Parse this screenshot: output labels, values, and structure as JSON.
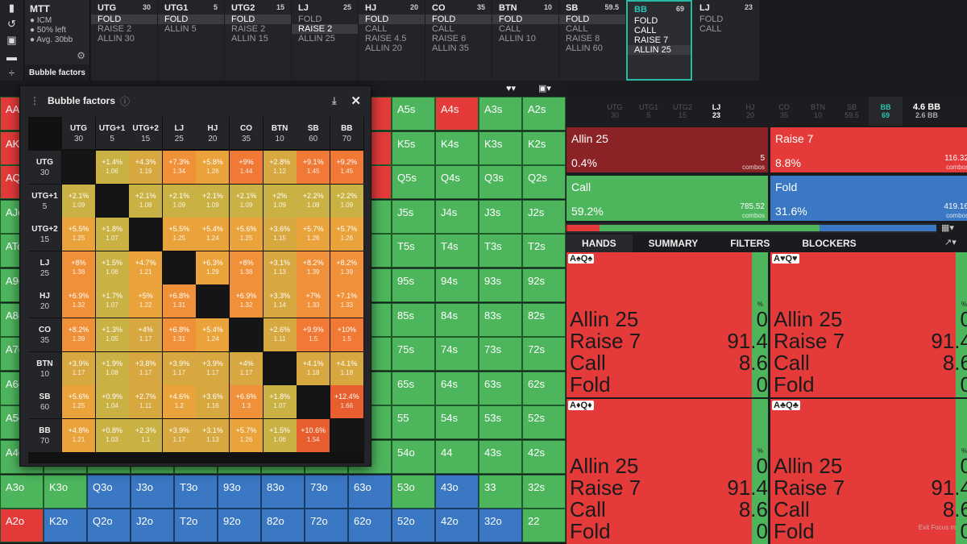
{
  "sidebar": {
    "icons": [
      "bookmark-icon",
      "undo-icon",
      "save-icon",
      "gamepad-icon",
      "split-icon"
    ]
  },
  "mtt": {
    "title": "MTT",
    "lines": [
      "ICM",
      "50% left",
      "Avg. 30bb"
    ],
    "bb_unit": "bb",
    "bubble_label": "Bubble factors"
  },
  "seats": [
    {
      "name": "UTG",
      "stack": "30",
      "actions": [
        "FOLD",
        "RAISE 2",
        "ALLIN 30"
      ],
      "sel": 0
    },
    {
      "name": "UTG1",
      "stack": "5",
      "actions": [
        "FOLD",
        "ALLIN 5"
      ],
      "sel": 0
    },
    {
      "name": "UTG2",
      "stack": "15",
      "actions": [
        "FOLD",
        "RAISE 2",
        "ALLIN 15"
      ],
      "sel": 0
    },
    {
      "name": "LJ",
      "stack": "25",
      "actions": [
        "FOLD",
        "RAISE 2",
        "ALLIN 25"
      ],
      "sel": 1
    },
    {
      "name": "HJ",
      "stack": "20",
      "actions": [
        "FOLD",
        "CALL",
        "RAISE 4.5",
        "ALLIN 20"
      ],
      "sel": 0
    },
    {
      "name": "CO",
      "stack": "35",
      "actions": [
        "FOLD",
        "CALL",
        "RAISE 6",
        "ALLIN 35"
      ],
      "sel": 0
    },
    {
      "name": "BTN",
      "stack": "10",
      "actions": [
        "FOLD",
        "CALL",
        "ALLIN 10"
      ],
      "sel": 0
    },
    {
      "name": "SB",
      "stack": "59.5",
      "actions": [
        "FOLD",
        "CALL",
        "RAISE 8",
        "ALLIN 60"
      ],
      "sel": 0
    },
    {
      "name": "BB",
      "stack": "69",
      "actions": [
        "FOLD",
        "CALL",
        "RAISE 7",
        "ALLIN 25"
      ],
      "sel": 3,
      "current": true
    },
    {
      "name": "LJ",
      "stack": "23",
      "actions": [
        "FOLD",
        "CALL"
      ],
      "sel": -1
    }
  ],
  "grid": [
    [
      "AA",
      "",
      "",
      "",
      "",
      "",
      "",
      "",
      "",
      "A5s",
      "A4s",
      "A3s",
      "A2s"
    ],
    [
      "AKo",
      "",
      "",
      "",
      "",
      "",
      "",
      "",
      "",
      "K5s",
      "K4s",
      "K3s",
      "K2s"
    ],
    [
      "AQo",
      "",
      "",
      "",
      "",
      "",
      "",
      "",
      "",
      "Q5s",
      "Q4s",
      "Q3s",
      "Q2s"
    ],
    [
      "AJo",
      "",
      "",
      "",
      "",
      "",
      "",
      "",
      "",
      "J5s",
      "J4s",
      "J3s",
      "J2s"
    ],
    [
      "ATo",
      "",
      "",
      "",
      "",
      "",
      "",
      "",
      "",
      "T5s",
      "T4s",
      "T3s",
      "T2s"
    ],
    [
      "A9o",
      "",
      "",
      "",
      "",
      "",
      "",
      "",
      "",
      "95s",
      "94s",
      "93s",
      "92s"
    ],
    [
      "A8o",
      "",
      "",
      "",
      "",
      "",
      "",
      "",
      "",
      "85s",
      "84s",
      "83s",
      "82s"
    ],
    [
      "A7o",
      "",
      "",
      "",
      "",
      "",
      "",
      "",
      "",
      "75s",
      "74s",
      "73s",
      "72s"
    ],
    [
      "A6o",
      "",
      "",
      "",
      "",
      "",
      "",
      "",
      "",
      "65s",
      "64s",
      "63s",
      "62s"
    ],
    [
      "A5o",
      "",
      "",
      "",
      "",
      "",
      "",
      "",
      "",
      "55",
      "54s",
      "53s",
      "52s"
    ],
    [
      "A4o",
      "",
      "",
      "",
      "",
      "",
      "",
      "",
      "",
      "54o",
      "44",
      "43s",
      "42s"
    ],
    [
      "A3o",
      "K3o",
      "Q3o",
      "J3o",
      "T3o",
      "93o",
      "83o",
      "73o",
      "63o",
      "53o",
      "43o",
      "33",
      "32s"
    ],
    [
      "A2o",
      "K2o",
      "Q2o",
      "J2o",
      "T2o",
      "92o",
      "82o",
      "72o",
      "62o",
      "52o",
      "42o",
      "32o",
      "22"
    ]
  ],
  "grid_colors": [
    [
      "r",
      "r",
      "r",
      "r",
      "r",
      "r",
      "r",
      "r",
      "r",
      "g",
      "r",
      "g",
      "g"
    ],
    [
      "r",
      "r",
      "r",
      "r",
      "r",
      "r",
      "r",
      "r",
      "r",
      "g",
      "g",
      "g",
      "g"
    ],
    [
      "r",
      "r",
      "r",
      "r",
      "r",
      "r",
      "r",
      "r",
      "r",
      "g",
      "g",
      "g",
      "g"
    ],
    [
      "g",
      "g",
      "g",
      "g",
      "g",
      "g",
      "g",
      "g",
      "g",
      "g",
      "g",
      "g",
      "g"
    ],
    [
      "g",
      "g",
      "g",
      "g",
      "g",
      "g",
      "g",
      "g",
      "g",
      "g",
      "g",
      "g",
      "g"
    ],
    [
      "g",
      "g",
      "g",
      "g",
      "g",
      "g",
      "g",
      "g",
      "g",
      "g",
      "g",
      "g",
      "g"
    ],
    [
      "g",
      "g",
      "g",
      "g",
      "g",
      "g",
      "g",
      "g",
      "g",
      "g",
      "g",
      "g",
      "g"
    ],
    [
      "g",
      "g",
      "g",
      "g",
      "g",
      "g",
      "g",
      "g",
      "g",
      "g",
      "g",
      "g",
      "g"
    ],
    [
      "g",
      "g",
      "g",
      "g",
      "g",
      "g",
      "g",
      "g",
      "g",
      "g",
      "g",
      "g",
      "g"
    ],
    [
      "g",
      "g",
      "g",
      "g",
      "g",
      "g",
      "g",
      "g",
      "g",
      "g",
      "g",
      "g",
      "g"
    ],
    [
      "g",
      "g",
      "g",
      "g",
      "g",
      "g",
      "g",
      "g",
      "g",
      "g",
      "g",
      "g",
      "g"
    ],
    [
      "g",
      "g",
      "b",
      "b",
      "b",
      "b",
      "b",
      "b",
      "b",
      "g",
      "b",
      "g",
      "g"
    ],
    [
      "r",
      "b",
      "b",
      "b",
      "b",
      "b",
      "b",
      "b",
      "b",
      "b",
      "b",
      "b",
      "g"
    ]
  ],
  "bubble": {
    "title": "Bubble factors",
    "cols": [
      [
        "UTG",
        "30"
      ],
      [
        "UTG+1",
        "5"
      ],
      [
        "UTG+2",
        "15"
      ],
      [
        "LJ",
        "25"
      ],
      [
        "HJ",
        "20"
      ],
      [
        "CO",
        "35"
      ],
      [
        "BTN",
        "10"
      ],
      [
        "SB",
        "60"
      ],
      [
        "BB",
        "70"
      ]
    ],
    "rows": [
      [
        "UTG",
        "30"
      ],
      [
        "UTG+1",
        "5"
      ],
      [
        "UTG+2",
        "15"
      ],
      [
        "LJ",
        "25"
      ],
      [
        "HJ",
        "20"
      ],
      [
        "CO",
        "35"
      ],
      [
        "BTN",
        "10"
      ],
      [
        "SB",
        "60"
      ],
      [
        "BB",
        "70"
      ]
    ],
    "cells": [
      [
        null,
        [
          "+1.4%",
          "1.06"
        ],
        [
          "+4.3%",
          "1.19"
        ],
        [
          "+7.3%",
          "1.34"
        ],
        [
          "+5.8%",
          "1.26"
        ],
        [
          "+9%",
          "1.44"
        ],
        [
          "+2.8%",
          "1.12"
        ],
        [
          "+9.1%",
          "1.45"
        ],
        [
          "+9.2%",
          "1.45"
        ]
      ],
      [
        [
          "+2.1%",
          "1.09"
        ],
        null,
        [
          "+2.1%",
          "1.09"
        ],
        [
          "+2.1%",
          "1.09"
        ],
        [
          "+2.1%",
          "1.09"
        ],
        [
          "+2.1%",
          "1.09"
        ],
        [
          "+2%",
          "1.09"
        ],
        [
          "+2.2%",
          "1.09"
        ],
        [
          "+2.2%",
          "1.09"
        ]
      ],
      [
        [
          "+5.5%",
          "1.25"
        ],
        [
          "+1.8%",
          "1.07"
        ],
        null,
        [
          "+5.5%",
          "1.25"
        ],
        [
          "+5.4%",
          "1.24"
        ],
        [
          "+5.6%",
          "1.25"
        ],
        [
          "+3.6%",
          "1.15"
        ],
        [
          "+5.7%",
          "1.26"
        ],
        [
          "+5.7%",
          "1.26"
        ]
      ],
      [
        [
          "+8%",
          "1.38"
        ],
        [
          "+1.5%",
          "1.06"
        ],
        [
          "+4.7%",
          "1.21"
        ],
        null,
        [
          "+6.3%",
          "1.29"
        ],
        [
          "+8%",
          "1.38"
        ],
        [
          "+3.1%",
          "1.13"
        ],
        [
          "+8.2%",
          "1.39"
        ],
        [
          "+8.2%",
          "1.39"
        ]
      ],
      [
        [
          "+6.9%",
          "1.32"
        ],
        [
          "+1.7%",
          "1.07"
        ],
        [
          "+5%",
          "1.22"
        ],
        [
          "+6.8%",
          "1.31"
        ],
        null,
        [
          "+6.9%",
          "1.32"
        ],
        [
          "+3.3%",
          "1.14"
        ],
        [
          "+7%",
          "1.33"
        ],
        [
          "+7.1%",
          "1.33"
        ]
      ],
      [
        [
          "+8.2%",
          "1.39"
        ],
        [
          "+1.3%",
          "1.05"
        ],
        [
          "+4%",
          "1.17"
        ],
        [
          "+6.8%",
          "1.31"
        ],
        [
          "+5.4%",
          "1.24"
        ],
        null,
        [
          "+2.6%",
          "1.11"
        ],
        [
          "+9.9%",
          "1.5"
        ],
        [
          "+10%",
          "1.5"
        ]
      ],
      [
        [
          "+3.9%",
          "1.17"
        ],
        [
          "+1.9%",
          "1.08"
        ],
        [
          "+3.8%",
          "1.17"
        ],
        [
          "+3.9%",
          "1.17"
        ],
        [
          "+3.9%",
          "1.17"
        ],
        [
          "+4%",
          "1.17"
        ],
        null,
        [
          "+4.1%",
          "1.18"
        ],
        [
          "+4.1%",
          "1.18"
        ]
      ],
      [
        [
          "+5.6%",
          "1.25"
        ],
        [
          "+0.9%",
          "1.04"
        ],
        [
          "+2.7%",
          "1.11"
        ],
        [
          "+4.6%",
          "1.2"
        ],
        [
          "+3.6%",
          "1.16"
        ],
        [
          "+6.6%",
          "1.3"
        ],
        [
          "+1.8%",
          "1.07"
        ],
        null,
        [
          "+12.4%",
          "1.66"
        ]
      ],
      [
        [
          "+4.8%",
          "1.21"
        ],
        [
          "+0.8%",
          "1.03"
        ],
        [
          "+2.3%",
          "1.1"
        ],
        [
          "+3.9%",
          "1.17"
        ],
        [
          "+3.1%",
          "1.13"
        ],
        [
          "+5.7%",
          "1.26"
        ],
        [
          "+1.5%",
          "1.06"
        ],
        [
          "+10.6%",
          "1.54"
        ],
        null
      ]
    ]
  },
  "right_seats": [
    [
      "UTG",
      "30"
    ],
    [
      "UTG1",
      "5"
    ],
    [
      "UTG2",
      "15"
    ],
    [
      "LJ",
      "23"
    ],
    [
      "HJ",
      "20"
    ],
    [
      "CO",
      "35"
    ],
    [
      "BTN",
      "10"
    ],
    [
      "SB",
      "59.5"
    ],
    [
      "BB",
      "69"
    ]
  ],
  "stack_info": {
    "main": "4.6 BB",
    "sub": "2.6 BB"
  },
  "actions": [
    {
      "name": "Allin 25",
      "pct": "0.4%",
      "combos": "5",
      "unit": "combos",
      "color": "#8b2226"
    },
    {
      "name": "Raise 7",
      "pct": "8.8%",
      "combos": "116.32",
      "unit": "combos",
      "color": "#e43a3a"
    },
    {
      "name": "Call",
      "pct": "59.2%",
      "combos": "785.52",
      "unit": "combos",
      "color": "#4db65d"
    },
    {
      "name": "Fold",
      "pct": "31.6%",
      "combos": "419.16",
      "unit": "combos",
      "color": "#3b78c4"
    }
  ],
  "tabs": [
    "HANDS",
    "SUMMARY",
    "FILTERS",
    "BLOCKERS"
  ],
  "hands": [
    {
      "cards": "A♠Q♠",
      "pct": "%",
      "rows": [
        [
          "Allin 25",
          "0"
        ],
        [
          "Raise 7",
          "91.4"
        ],
        [
          "Call",
          "8.6"
        ],
        [
          "Fold",
          "0"
        ]
      ]
    },
    {
      "cards": "A♥Q♥",
      "pct": "%",
      "rows": [
        [
          "Allin 25",
          "0"
        ],
        [
          "Raise 7",
          "91.4"
        ],
        [
          "Call",
          "8.6"
        ],
        [
          "Fold",
          "0"
        ]
      ]
    },
    {
      "cards": "A♦Q♦",
      "pct": "%",
      "rows": [
        [
          "Allin 25",
          "0"
        ],
        [
          "Raise 7",
          "91.4"
        ],
        [
          "Call",
          "8.6"
        ],
        [
          "Fold",
          "0"
        ]
      ]
    },
    {
      "cards": "A♣Q♣",
      "pct": "%",
      "rows": [
        [
          "Allin 25",
          "0"
        ],
        [
          "Raise 7",
          "91.4"
        ],
        [
          "Call",
          "8.6"
        ],
        [
          "Fold",
          "0"
        ]
      ]
    }
  ],
  "watermark": "Exit Focus m"
}
